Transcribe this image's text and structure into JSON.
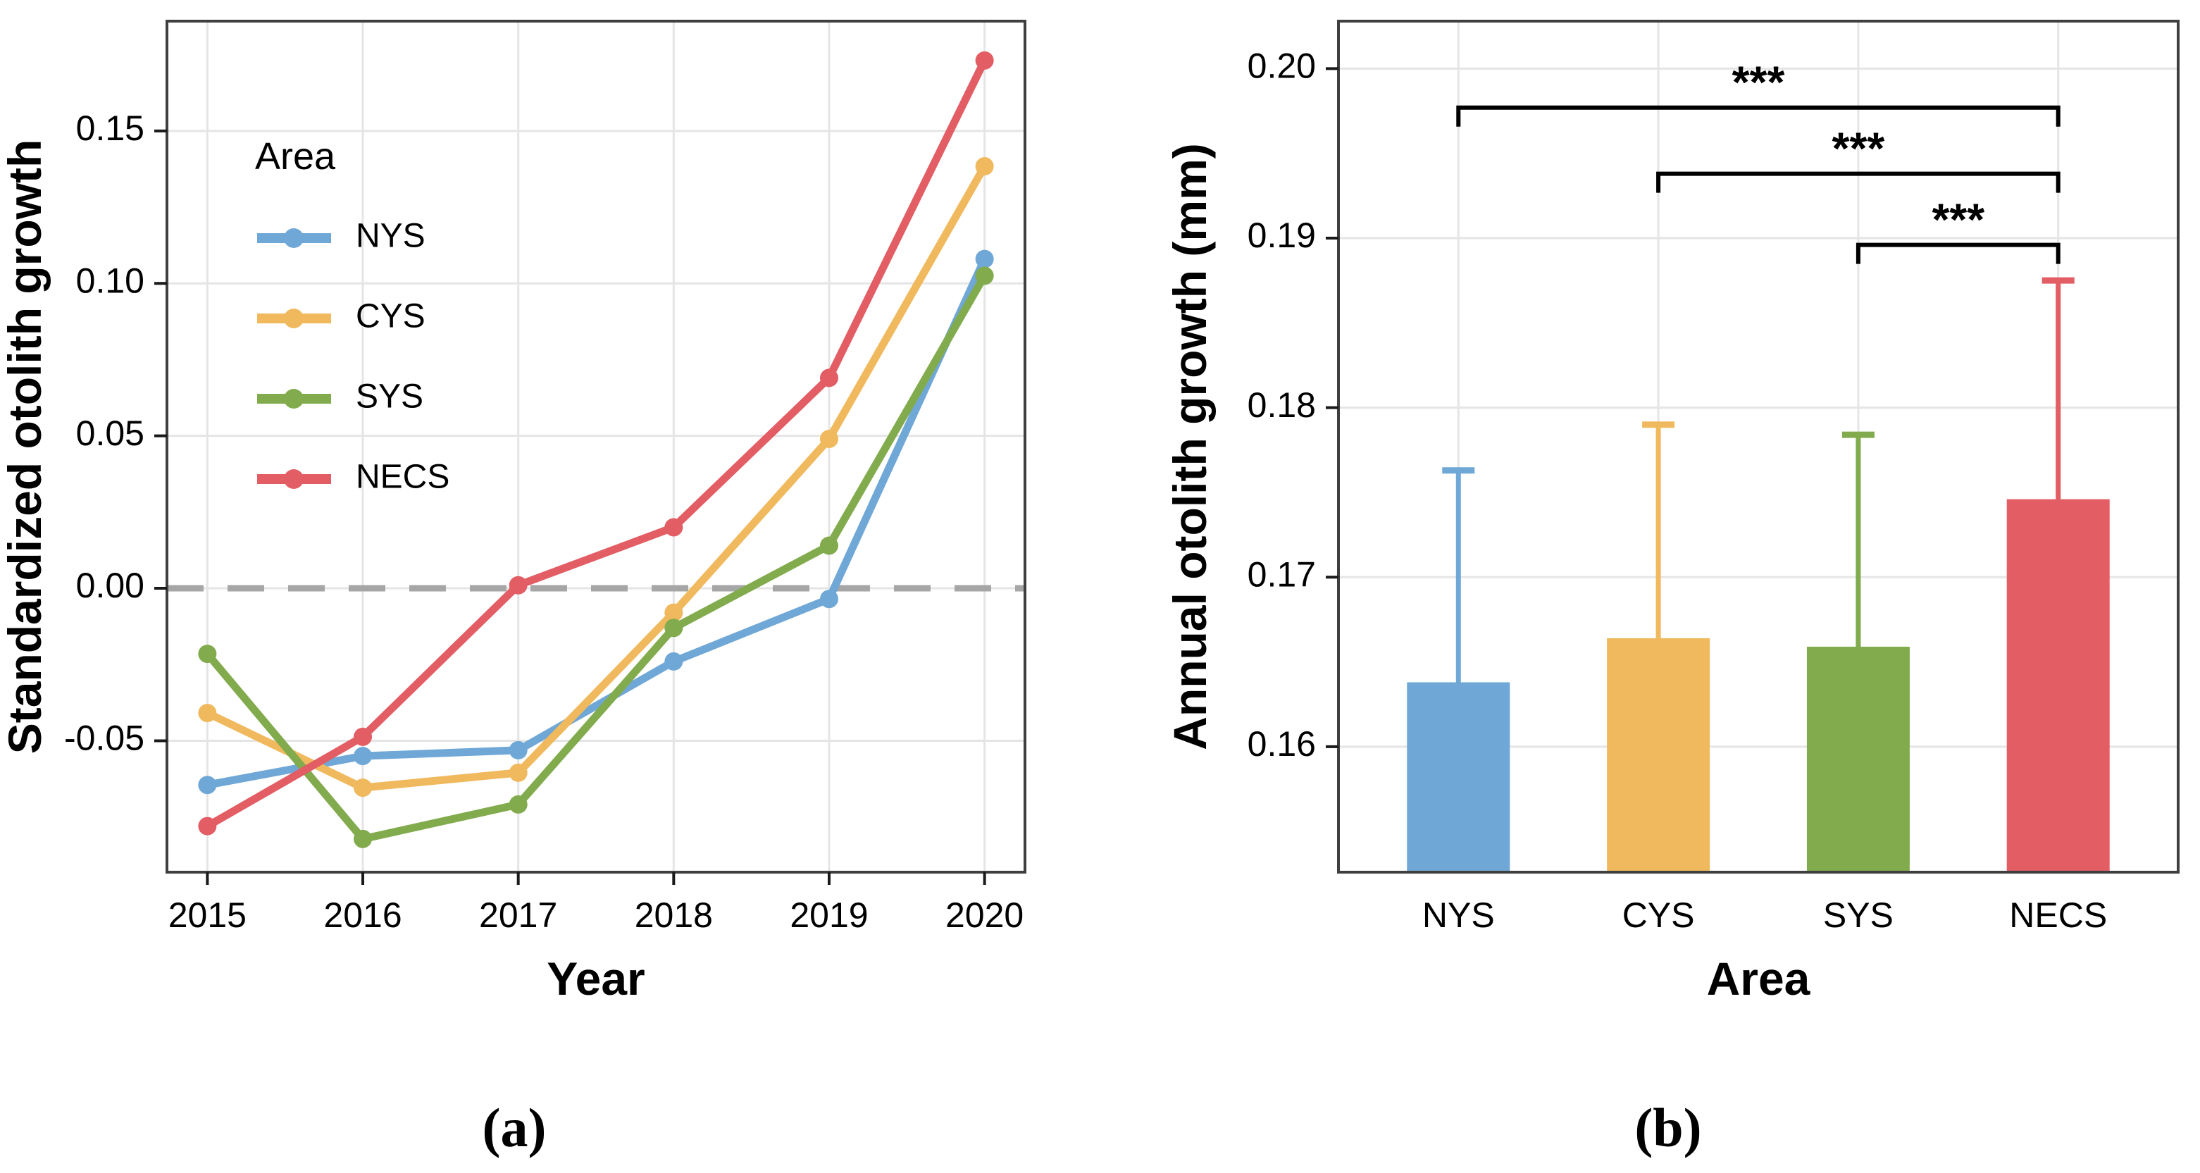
{
  "figure": {
    "background": "#ffffff",
    "captions": {
      "a": "(a)",
      "b": "(b)"
    }
  },
  "palette": {
    "NYS": "#6FA7D6",
    "CYS": "#F0B95D",
    "SYS": "#81AB4D",
    "NECS": "#E25D64",
    "grid": "#E5E5E5",
    "panel_border": "#3F3F3F",
    "zero_line": "#A6A6A6",
    "tick": "#1A1A1A",
    "text": "#000000",
    "bracket": "#000000"
  },
  "chart_data": [
    {
      "panel": "a",
      "type": "line",
      "xlabel": "Year",
      "ylabel": "Standardized otolith growth",
      "x": [
        2015,
        2016,
        2017,
        2018,
        2019,
        2020
      ],
      "xtick_labels": [
        "2015",
        "2016",
        "2017",
        "2018",
        "2019",
        "2020"
      ],
      "yticks": [
        0.15,
        0.1,
        0.05,
        0.0,
        -0.05
      ],
      "ytick_labels": [
        "0.15",
        "0.10",
        "0.05",
        "0.00",
        "-0.05"
      ],
      "ylim": [
        -0.0931,
        0.186
      ],
      "grid": true,
      "zero_line": 0.0,
      "legend": {
        "title": "Area",
        "position": "top-left"
      },
      "series": [
        {
          "name": "NYS",
          "color_key": "NYS",
          "values": [
            -0.0645,
            -0.055,
            -0.0531,
            -0.024,
            -0.0035,
            0.108
          ]
        },
        {
          "name": "CYS",
          "color_key": "CYS",
          "values": [
            -0.0409,
            -0.0654,
            -0.0605,
            -0.008,
            0.049,
            0.1384
          ]
        },
        {
          "name": "SYS",
          "color_key": "SYS",
          "values": [
            -0.0215,
            -0.0822,
            -0.0709,
            -0.013,
            0.014,
            0.1025
          ]
        },
        {
          "name": "NECS",
          "color_key": "NECS",
          "values": [
            -0.078,
            -0.0487,
            0.001,
            0.02,
            0.069,
            0.1731
          ]
        }
      ]
    },
    {
      "panel": "b",
      "type": "bar",
      "xlabel": "Area",
      "ylabel": "Annual otolith growth (mm)",
      "categories": [
        "NYS",
        "CYS",
        "SYS",
        "NECS"
      ],
      "values": [
        0.1638,
        0.1664,
        0.1659,
        0.1746
      ],
      "error_upper": [
        0.1763,
        0.179,
        0.1784,
        0.1875
      ],
      "color_keys": [
        "NYS",
        "CYS",
        "SYS",
        "NECS"
      ],
      "yticks": [
        0.2,
        0.19,
        0.18,
        0.17,
        0.16
      ],
      "ytick_labels": [
        "0.20",
        "0.19",
        "0.18",
        "0.17",
        "0.16"
      ],
      "ylim": [
        0.1526,
        0.2028
      ],
      "grid": true,
      "legend": null,
      "significance": [
        {
          "from": "NYS",
          "to": "NECS",
          "y": 0.1977,
          "label": "***"
        },
        {
          "from": "CYS",
          "to": "NECS",
          "y": 0.1938,
          "label": "***"
        },
        {
          "from": "SYS",
          "to": "NECS",
          "y": 0.1896,
          "label": "***"
        }
      ]
    }
  ]
}
